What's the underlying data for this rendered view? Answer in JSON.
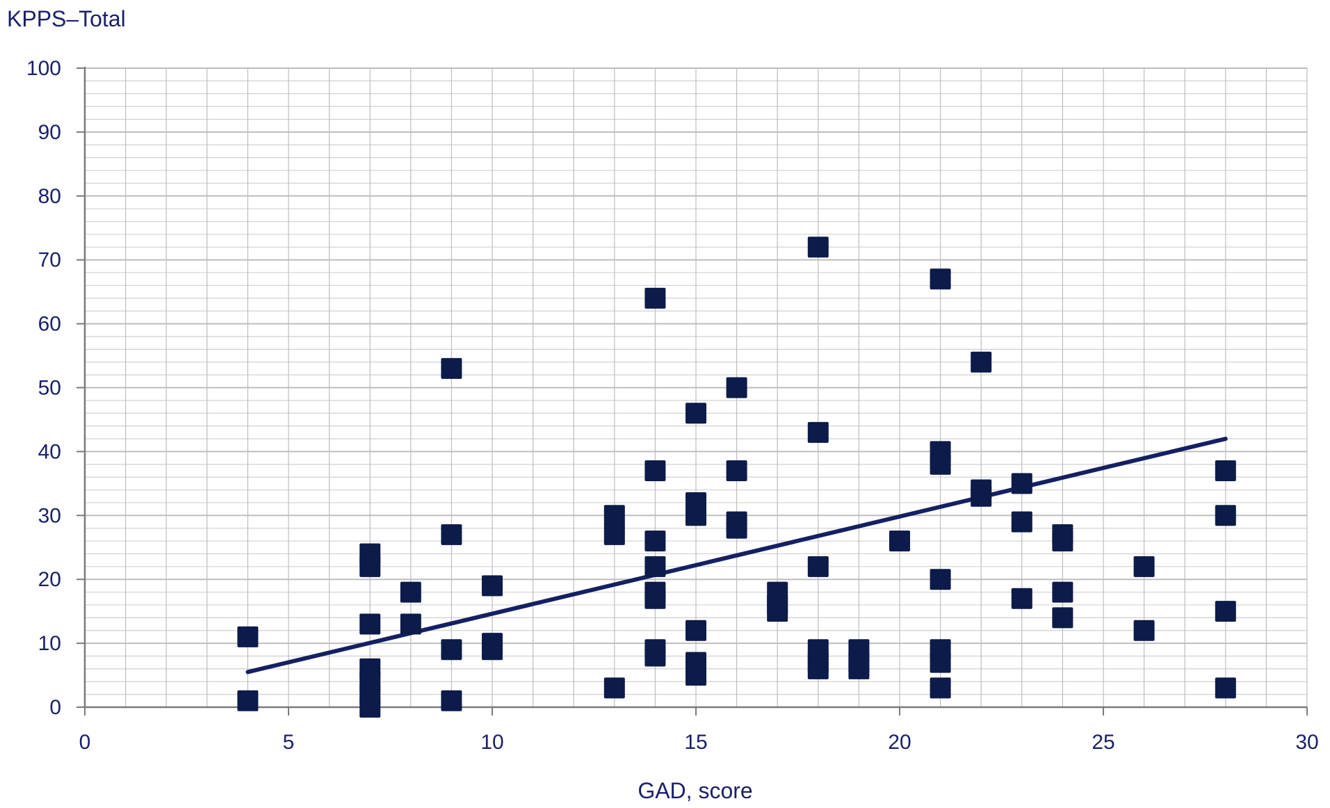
{
  "chart_data": {
    "type": "scatter",
    "xlabel": "GAD, score",
    "ylabel": "KPPS–Total",
    "xlim": [
      0,
      30
    ],
    "ylim": [
      0,
      100
    ],
    "x_ticks": [
      "0",
      "5",
      "10",
      "15",
      "20",
      "25",
      "30"
    ],
    "y_ticks": [
      "0",
      "10",
      "20",
      "30",
      "40",
      "50",
      "60",
      "70",
      "80",
      "90",
      "100"
    ],
    "grid": true,
    "marker": "square",
    "colors": {
      "marker": "#0d1b4a",
      "trendline": "#142063",
      "grid_major": "#bdbdbd",
      "grid_minor": "#d0d0d0",
      "text": "#1a1f6b"
    },
    "points": [
      {
        "x": 4,
        "y": 11
      },
      {
        "x": 4,
        "y": 1
      },
      {
        "x": 7,
        "y": 24
      },
      {
        "x": 7,
        "y": 22
      },
      {
        "x": 7,
        "y": 13
      },
      {
        "x": 7,
        "y": 6
      },
      {
        "x": 7,
        "y": 4
      },
      {
        "x": 7,
        "y": 2
      },
      {
        "x": 7,
        "y": 0
      },
      {
        "x": 8,
        "y": 18
      },
      {
        "x": 8,
        "y": 13
      },
      {
        "x": 9,
        "y": 53
      },
      {
        "x": 9,
        "y": 27
      },
      {
        "x": 9,
        "y": 9
      },
      {
        "x": 9,
        "y": 1
      },
      {
        "x": 10,
        "y": 19
      },
      {
        "x": 10,
        "y": 10
      },
      {
        "x": 10,
        "y": 9
      },
      {
        "x": 13,
        "y": 30
      },
      {
        "x": 13,
        "y": 27
      },
      {
        "x": 13,
        "y": 3
      },
      {
        "x": 14,
        "y": 64
      },
      {
        "x": 14,
        "y": 37
      },
      {
        "x": 14,
        "y": 26
      },
      {
        "x": 14,
        "y": 22
      },
      {
        "x": 14,
        "y": 18
      },
      {
        "x": 14,
        "y": 17
      },
      {
        "x": 14,
        "y": 9
      },
      {
        "x": 14,
        "y": 8
      },
      {
        "x": 15,
        "y": 46
      },
      {
        "x": 15,
        "y": 32
      },
      {
        "x": 15,
        "y": 30
      },
      {
        "x": 15,
        "y": 12
      },
      {
        "x": 15,
        "y": 7
      },
      {
        "x": 15,
        "y": 5
      },
      {
        "x": 16,
        "y": 50
      },
      {
        "x": 16,
        "y": 37
      },
      {
        "x": 16,
        "y": 29
      },
      {
        "x": 16,
        "y": 28
      },
      {
        "x": 17,
        "y": 18
      },
      {
        "x": 17,
        "y": 16
      },
      {
        "x": 17,
        "y": 15
      },
      {
        "x": 18,
        "y": 72
      },
      {
        "x": 18,
        "y": 43
      },
      {
        "x": 18,
        "y": 22
      },
      {
        "x": 18,
        "y": 9
      },
      {
        "x": 18,
        "y": 7
      },
      {
        "x": 18,
        "y": 6
      },
      {
        "x": 19,
        "y": 9
      },
      {
        "x": 19,
        "y": 7
      },
      {
        "x": 19,
        "y": 6
      },
      {
        "x": 20,
        "y": 26
      },
      {
        "x": 21,
        "y": 67
      },
      {
        "x": 21,
        "y": 40
      },
      {
        "x": 21,
        "y": 38
      },
      {
        "x": 21,
        "y": 20
      },
      {
        "x": 21,
        "y": 9
      },
      {
        "x": 21,
        "y": 7
      },
      {
        "x": 21,
        "y": 3
      },
      {
        "x": 22,
        "y": 54
      },
      {
        "x": 22,
        "y": 34
      },
      {
        "x": 22,
        "y": 33
      },
      {
        "x": 23,
        "y": 35
      },
      {
        "x": 23,
        "y": 29
      },
      {
        "x": 23,
        "y": 17
      },
      {
        "x": 24,
        "y": 27
      },
      {
        "x": 24,
        "y": 26
      },
      {
        "x": 24,
        "y": 18
      },
      {
        "x": 24,
        "y": 14
      },
      {
        "x": 26,
        "y": 22
      },
      {
        "x": 26,
        "y": 12
      },
      {
        "x": 28,
        "y": 37
      },
      {
        "x": 28,
        "y": 30
      },
      {
        "x": 28,
        "y": 15
      },
      {
        "x": 28,
        "y": 3
      }
    ],
    "trendline": {
      "x": [
        4,
        28
      ],
      "y": [
        5.5,
        42
      ]
    }
  }
}
